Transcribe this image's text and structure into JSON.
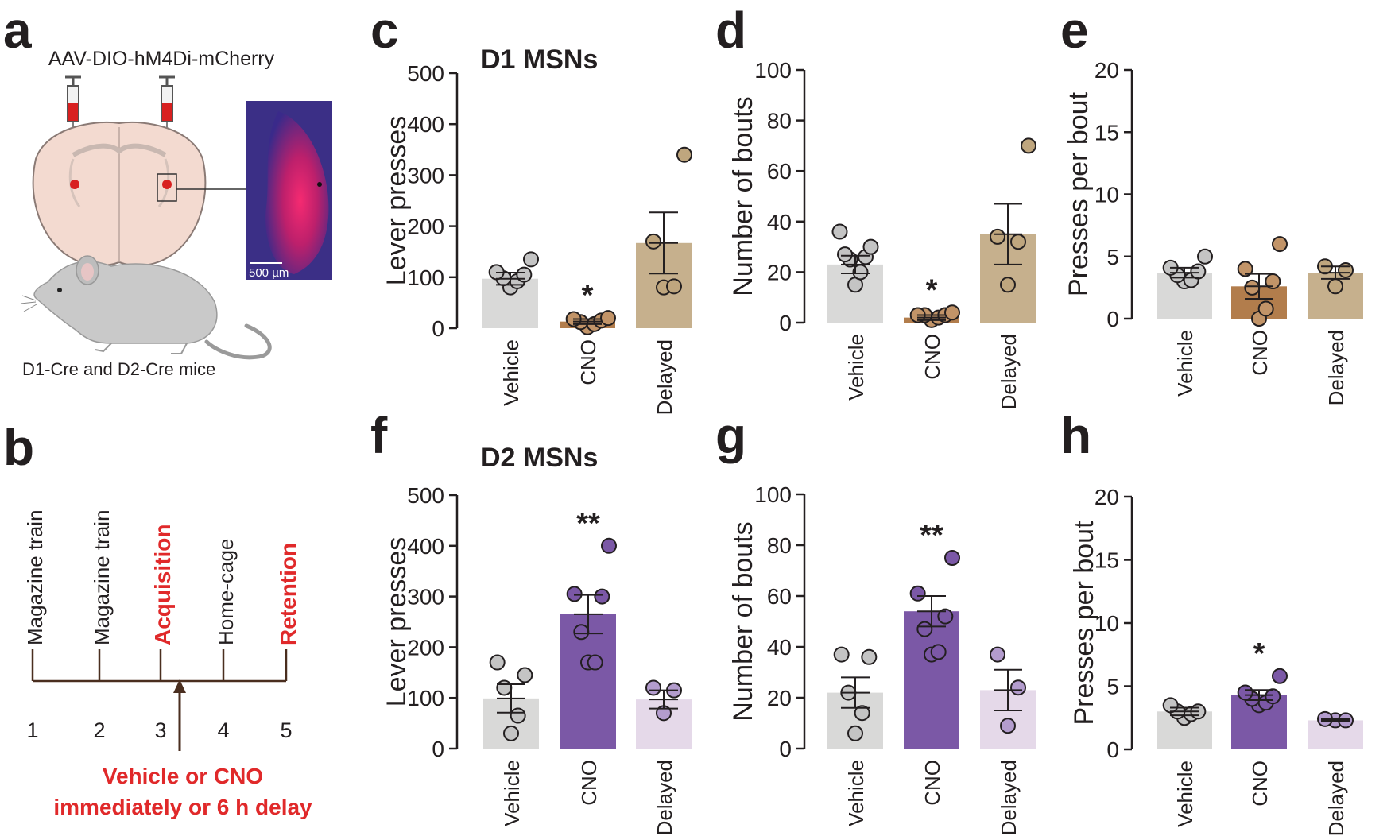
{
  "panel_labels": {
    "a": "a",
    "b": "b",
    "c": "c",
    "d": "d",
    "e": "e",
    "f": "f",
    "g": "g",
    "h": "h"
  },
  "panel_a": {
    "virus": "AAV-DIO-hM4Di-mCherry",
    "scale_bar": "500 µm",
    "mice": "D1-Cre and D2-Cre mice"
  },
  "panel_b": {
    "steps": [
      {
        "day": "1",
        "label": "Magazine train",
        "highlight": false
      },
      {
        "day": "2",
        "label": "Magazine train",
        "highlight": false
      },
      {
        "day": "3",
        "label": "Acquisition",
        "highlight": true
      },
      {
        "day": "4",
        "label": "Home-cage",
        "highlight": false
      },
      {
        "day": "5",
        "label": "Retention",
        "highlight": true
      }
    ],
    "injection_line1": "Vehicle or CNO",
    "injection_line2": "immediately or 6 h delay"
  },
  "colors": {
    "vehicle": "#d9d9d8",
    "vehicle_dot": "#c4c4c4",
    "cno_d1": "#b27d4c",
    "cno_d1_dot": "#c29468",
    "delayed_d1": "#c6b08d",
    "delayed_d1_dot": "#bfa67e",
    "cno_d2": "#7b58a6",
    "cno_d2_dot": "#7b58a6",
    "delayed_d2": "#e5d9e9",
    "delayed_d2_dot": "#b39ccd",
    "accent_red": "#e0292a"
  },
  "chart_data": [
    {
      "id": "c",
      "type": "bar",
      "group_title": "D1 MSNs",
      "categories": [
        "Vehicle",
        "CNO",
        "Delayed"
      ],
      "ylabel": "Lever presses",
      "ylim": [
        0,
        500
      ],
      "yticks": [
        0,
        100,
        200,
        300,
        400,
        500
      ],
      "means": [
        97,
        13,
        167
      ],
      "sem": [
        12,
        5,
        60
      ],
      "points": [
        [
          80,
          92,
          98,
          105,
          110,
          135
        ],
        [
          2,
          8,
          12,
          15,
          18,
          20
        ],
        [
          80,
          82,
          170,
          340
        ]
      ],
      "significance": [
        "",
        "*",
        ""
      ]
    },
    {
      "id": "d",
      "type": "bar",
      "categories": [
        "Vehicle",
        "CNO",
        "Delayed"
      ],
      "ylabel": "Number of bouts",
      "ylim": [
        0,
        100
      ],
      "yticks": [
        0,
        20,
        40,
        60,
        80,
        100
      ],
      "means": [
        23,
        2,
        35
      ],
      "sem": [
        3.5,
        1,
        12
      ],
      "points": [
        [
          15,
          20,
          25,
          26,
          27,
          30,
          36
        ],
        [
          1,
          2,
          3,
          3,
          3,
          4
        ],
        [
          15,
          32,
          34,
          70
        ]
      ],
      "significance": [
        "",
        "*",
        ""
      ]
    },
    {
      "id": "e",
      "type": "bar",
      "categories": [
        "Vehicle",
        "CNO",
        "Delayed"
      ],
      "ylabel": "Presses per bout",
      "ylim": [
        0,
        20
      ],
      "yticks": [
        0,
        5,
        10,
        15,
        20
      ],
      "means": [
        3.7,
        2.6,
        3.7
      ],
      "sem": [
        0.4,
        1.0,
        0.5
      ],
      "points": [
        [
          3.0,
          3.1,
          3.5,
          3.8,
          4.1,
          5.0
        ],
        [
          0,
          0.8,
          2.5,
          3.0,
          4.0,
          6.0
        ],
        [
          2.6,
          3.9,
          4.2
        ]
      ],
      "significance": [
        "",
        "",
        ""
      ]
    },
    {
      "id": "f",
      "type": "bar",
      "group_title": "D2 MSNs",
      "categories": [
        "Vehicle",
        "CNO",
        "Delayed"
      ],
      "ylabel": "Lever presses",
      "ylim": [
        0,
        500
      ],
      "yticks": [
        0,
        100,
        200,
        300,
        400,
        500
      ],
      "means": [
        99,
        265,
        97
      ],
      "sem": [
        28,
        38,
        18
      ],
      "points": [
        [
          30,
          65,
          120,
          145,
          170
        ],
        [
          170,
          170,
          230,
          300,
          305,
          400
        ],
        [
          70,
          115,
          120
        ]
      ],
      "significance": [
        "",
        "**",
        ""
      ]
    },
    {
      "id": "g",
      "type": "bar",
      "categories": [
        "Vehicle",
        "CNO",
        "Delayed"
      ],
      "ylabel": "Number of bouts",
      "ylim": [
        0,
        100
      ],
      "yticks": [
        0,
        20,
        40,
        60,
        80,
        100
      ],
      "means": [
        22,
        54,
        23
      ],
      "sem": [
        6,
        6,
        8
      ],
      "points": [
        [
          6,
          14,
          22,
          36,
          37
        ],
        [
          37,
          38,
          47,
          52,
          61,
          75
        ],
        [
          9,
          24,
          37
        ]
      ],
      "significance": [
        "",
        "**",
        ""
      ]
    },
    {
      "id": "h",
      "type": "bar",
      "categories": [
        "Vehicle",
        "CNO",
        "Delayed"
      ],
      "ylabel": "Presses per bout",
      "ylim": [
        0,
        20
      ],
      "yticks": [
        0,
        5,
        10,
        15,
        20
      ],
      "means": [
        3.0,
        4.3,
        2.3
      ],
      "sem": [
        0.3,
        0.4,
        0.1
      ],
      "points": [
        [
          2.5,
          2.8,
          3.0,
          3.0,
          3.5
        ],
        [
          3.5,
          3.7,
          4.0,
          4.2,
          4.5,
          5.8
        ],
        [
          2.3,
          2.3,
          2.4
        ]
      ],
      "significance": [
        "",
        "*",
        ""
      ]
    }
  ]
}
